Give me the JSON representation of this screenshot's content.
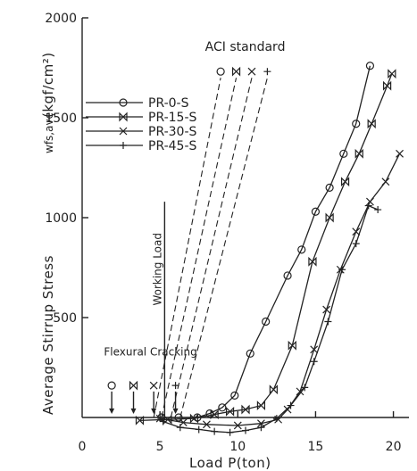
{
  "chart_data": {
    "type": "line",
    "xlabel": "Load   P(ton)",
    "ylabel": "Average Stirrup Stress",
    "ylabel_sym": "wfs,ave",
    "ylabel_unit": "(kgf/cm²)",
    "xlim": [
      0,
      21
    ],
    "ylim": [
      0,
      2000
    ],
    "x_ticks": [
      0,
      5,
      10,
      15,
      20
    ],
    "y_ticks": [
      500,
      1000,
      1500,
      2000
    ],
    "legend_position": "upper-left",
    "series": [
      {
        "name": "PR-0-S",
        "marker": "circle",
        "points": [
          [
            5.1,
            0
          ],
          [
            6.2,
            0
          ],
          [
            7.4,
            0
          ],
          [
            8.2,
            20
          ],
          [
            9.0,
            50
          ],
          [
            9.8,
            110
          ],
          [
            10.8,
            320
          ],
          [
            11.8,
            480
          ],
          [
            13.2,
            710
          ],
          [
            14.1,
            840
          ],
          [
            15.0,
            1030
          ],
          [
            15.9,
            1150
          ],
          [
            16.8,
            1320
          ],
          [
            17.6,
            1470
          ],
          [
            18.5,
            1760
          ]
        ]
      },
      {
        "name": "PR-15-S",
        "marker": "bowtie",
        "points": [
          [
            3.7,
            -15
          ],
          [
            5.5,
            -10
          ],
          [
            7.2,
            -5
          ],
          [
            8.5,
            15
          ],
          [
            9.5,
            30
          ],
          [
            10.5,
            40
          ],
          [
            11.5,
            60
          ],
          [
            12.3,
            140
          ],
          [
            13.5,
            360
          ],
          [
            14.8,
            780
          ],
          [
            15.9,
            1000
          ],
          [
            16.9,
            1180
          ],
          [
            17.8,
            1320
          ],
          [
            18.6,
            1470
          ],
          [
            19.6,
            1660
          ],
          [
            19.9,
            1720
          ]
        ]
      },
      {
        "name": "PR-30-S",
        "marker": "x",
        "points": [
          [
            5.0,
            -5
          ],
          [
            6.5,
            -25
          ],
          [
            8.0,
            -35
          ],
          [
            10.0,
            -40
          ],
          [
            11.5,
            -30
          ],
          [
            12.6,
            -10
          ],
          [
            13.2,
            40
          ],
          [
            14.0,
            130
          ],
          [
            14.9,
            340
          ],
          [
            15.7,
            540
          ],
          [
            16.6,
            740
          ],
          [
            17.6,
            930
          ],
          [
            18.5,
            1080
          ],
          [
            19.5,
            1180
          ],
          [
            20.4,
            1320
          ]
        ]
      },
      {
        "name": "PR-45-S",
        "marker": "plus",
        "points": [
          [
            5.2,
            -20
          ],
          [
            6.3,
            -50
          ],
          [
            7.5,
            -60
          ],
          [
            8.5,
            -70
          ],
          [
            9.5,
            -75
          ],
          [
            10.5,
            -65
          ],
          [
            11.5,
            -50
          ],
          [
            12.5,
            -5
          ],
          [
            13.4,
            60
          ],
          [
            14.3,
            150
          ],
          [
            14.9,
            280
          ],
          [
            15.8,
            480
          ],
          [
            16.7,
            740
          ],
          [
            17.6,
            870
          ],
          [
            18.4,
            1060
          ],
          [
            19.0,
            1040
          ]
        ]
      }
    ],
    "aci_standard": {
      "label": "ACI standard",
      "lines": [
        {
          "series": "PR-0-S",
          "x0": 4.6,
          "x1": 8.9,
          "y_top": 1700
        },
        {
          "series": "PR-15-S",
          "x0": 5.1,
          "x1": 9.9,
          "y_top": 1700
        },
        {
          "series": "PR-30-S",
          "x0": 5.7,
          "x1": 10.9,
          "y_top": 1700
        },
        {
          "series": "PR-45-S",
          "x0": 6.3,
          "x1": 11.9,
          "y_top": 1700
        }
      ]
    },
    "working_load": {
      "label": "Working Load",
      "x": 5.3,
      "y_top": 1080
    },
    "flexural_cracking": {
      "label": "Flexural Cracking",
      "markers": [
        {
          "series": "PR-0-S",
          "x": 1.9
        },
        {
          "series": "PR-15-S",
          "x": 3.3
        },
        {
          "series": "PR-30-S",
          "x": 4.6
        },
        {
          "series": "PR-45-S",
          "x": 6.0
        }
      ]
    }
  }
}
